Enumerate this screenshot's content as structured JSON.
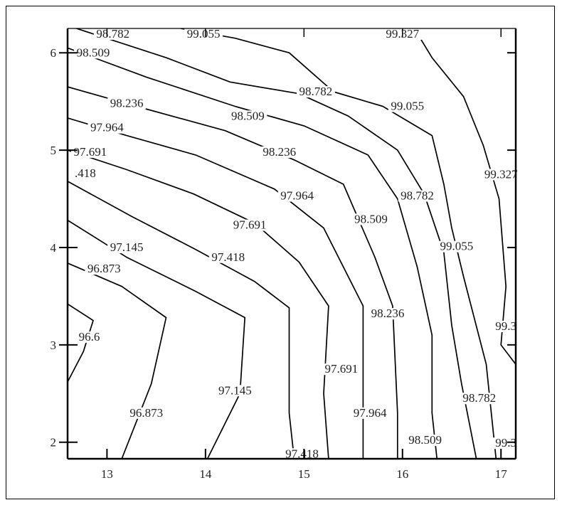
{
  "chart_data": {
    "type": "contour",
    "title": "",
    "xlabel": "",
    "ylabel": "",
    "xlim": [
      12.6,
      17.15
    ],
    "ylim": [
      1.83,
      6.25
    ],
    "x_ticks": [
      "13",
      "14",
      "15",
      "16",
      "17"
    ],
    "y_ticks": [
      "2",
      "3",
      "4",
      "5",
      "6"
    ],
    "x_tick_values": [
      13,
      14,
      15,
      16,
      17
    ],
    "y_tick_values": [
      2,
      3,
      4,
      5,
      6
    ],
    "contours": [
      {
        "level": "96.6",
        "points": [
          [
            12.6,
            3.42
          ],
          [
            12.86,
            3.25
          ],
          [
            12.76,
            2.93
          ],
          [
            12.6,
            2.62
          ]
        ],
        "labels": [
          [
            12.82,
            3.05
          ]
        ]
      },
      {
        "level": "96.873",
        "points": [
          [
            12.6,
            3.84
          ],
          [
            13.15,
            3.6
          ],
          [
            13.6,
            3.28
          ],
          [
            13.45,
            2.6
          ],
          [
            13.15,
            1.83
          ]
        ],
        "labels": [
          [
            12.97,
            3.75
          ],
          [
            13.4,
            2.27
          ]
        ]
      },
      {
        "level": "97.145",
        "points": [
          [
            12.6,
            4.28
          ],
          [
            13.2,
            3.9
          ],
          [
            13.9,
            3.55
          ],
          [
            14.4,
            3.28
          ],
          [
            14.35,
            2.5
          ],
          [
            14.02,
            1.83
          ]
        ],
        "labels": [
          [
            13.2,
            3.97
          ],
          [
            14.3,
            2.5
          ]
        ]
      },
      {
        "level": "97.418",
        "points": [
          [
            12.6,
            4.68
          ],
          [
            13.25,
            4.32
          ],
          [
            13.9,
            3.98
          ],
          [
            14.5,
            3.65
          ],
          [
            14.85,
            3.38
          ],
          [
            14.85,
            2.3
          ],
          [
            14.9,
            1.83
          ]
        ],
        "labels": [
          [
            12.78,
            4.73
          ],
          [
            14.23,
            3.87
          ],
          [
            14.98,
            1.85
          ]
        ]
      },
      {
        "level": "97.691",
        "points": [
          [
            12.6,
            5.0
          ],
          [
            13.2,
            4.8
          ],
          [
            13.88,
            4.55
          ],
          [
            14.5,
            4.25
          ],
          [
            14.95,
            3.85
          ],
          [
            15.25,
            3.4
          ],
          [
            15.2,
            2.5
          ],
          [
            15.25,
            1.83
          ]
        ],
        "labels": [
          [
            12.83,
            4.95
          ],
          [
            14.45,
            4.2
          ],
          [
            15.38,
            2.72
          ]
        ]
      },
      {
        "level": "97.964",
        "points": [
          [
            12.6,
            5.33
          ],
          [
            13.2,
            5.15
          ],
          [
            13.9,
            4.95
          ],
          [
            14.7,
            4.6
          ],
          [
            15.2,
            4.2
          ],
          [
            15.45,
            3.7
          ],
          [
            15.6,
            3.4
          ],
          [
            15.6,
            2.2
          ],
          [
            15.6,
            1.83
          ]
        ],
        "labels": [
          [
            13.0,
            5.2
          ],
          [
            14.93,
            4.5
          ],
          [
            15.67,
            2.27
          ]
        ]
      },
      {
        "level": "98.236",
        "points": [
          [
            12.6,
            5.65
          ],
          [
            13.3,
            5.45
          ],
          [
            14.2,
            5.2
          ],
          [
            14.9,
            4.9
          ],
          [
            15.4,
            4.65
          ],
          [
            15.72,
            3.9
          ],
          [
            15.9,
            3.4
          ],
          [
            15.95,
            2.3
          ],
          [
            15.95,
            1.83
          ]
        ],
        "labels": [
          [
            13.2,
            5.45
          ],
          [
            14.75,
            4.95
          ],
          [
            15.85,
            3.29
          ]
        ]
      },
      {
        "level": "98.509",
        "points": [
          [
            12.6,
            6.05
          ],
          [
            13.4,
            5.75
          ],
          [
            14.3,
            5.45
          ],
          [
            15.0,
            5.25
          ],
          [
            15.65,
            4.95
          ],
          [
            15.95,
            4.5
          ],
          [
            16.15,
            3.8
          ],
          [
            16.3,
            3.1
          ],
          [
            16.3,
            2.3
          ],
          [
            16.35,
            1.83
          ]
        ],
        "labels": [
          [
            12.86,
            5.97
          ],
          [
            14.43,
            5.32
          ],
          [
            15.68,
            4.26
          ],
          [
            16.23,
            1.99
          ]
        ]
      },
      {
        "level": "98.782",
        "points": [
          [
            12.6,
            6.28
          ],
          [
            13.6,
            5.95
          ],
          [
            14.25,
            5.7
          ],
          [
            14.95,
            5.58
          ],
          [
            15.45,
            5.35
          ],
          [
            15.95,
            5.0
          ],
          [
            16.22,
            4.55
          ],
          [
            16.42,
            3.95
          ],
          [
            16.5,
            3.2
          ],
          [
            16.6,
            2.6
          ],
          [
            16.75,
            1.83
          ]
        ],
        "labels": [
          [
            13.06,
            6.25
          ],
          [
            15.12,
            5.57
          ],
          [
            16.15,
            4.5
          ],
          [
            16.78,
            2.42
          ]
        ]
      },
      {
        "level": "99.055",
        "points": [
          [
            13.75,
            6.25
          ],
          [
            14.3,
            6.15
          ],
          [
            14.85,
            6.0
          ],
          [
            15.3,
            5.6
          ],
          [
            15.8,
            5.45
          ],
          [
            16.3,
            5.15
          ],
          [
            16.42,
            4.65
          ],
          [
            16.5,
            4.2
          ],
          [
            16.62,
            3.7
          ],
          [
            16.85,
            2.8
          ],
          [
            16.95,
            1.83
          ]
        ],
        "labels": [
          [
            13.98,
            6.25
          ],
          [
            16.05,
            5.42
          ],
          [
            16.55,
            3.98
          ]
        ]
      },
      {
        "level": "99.327",
        "points": [
          [
            16.12,
            6.25
          ],
          [
            16.3,
            5.95
          ],
          [
            16.62,
            5.55
          ],
          [
            16.82,
            5.05
          ],
          [
            16.98,
            4.5
          ],
          [
            17.05,
            3.6
          ],
          [
            17.0,
            3.0
          ],
          [
            17.15,
            2.8
          ]
        ],
        "labels": [
          [
            16.0,
            6.27
          ],
          [
            17.0,
            4.72
          ],
          [
            17.05,
            3.16
          ],
          [
            17.05,
            1.96
          ]
        ]
      }
    ],
    "label_texts": {
      "99.327": [
        "99.327",
        "99.327",
        "99.3",
        "99.3"
      ],
      "98.782": [
        "98.782",
        "98.782",
        "98.782",
        "98.782"
      ],
      "99.055": [
        "99.055",
        "99.055",
        "99.055"
      ],
      "97.418": [
        ".418",
        "97.418",
        "97.418"
      ],
      "96.6": [
        "96.6"
      ],
      "96.873": [
        "96.873",
        "96.873"
      ],
      "97.145": [
        "97.145",
        "97.145"
      ],
      "97.691": [
        "97.691",
        "97.691",
        "97.691"
      ],
      "97.964": [
        "97.964",
        "97.964",
        "97.964"
      ],
      "98.236": [
        "98.236",
        "98.236",
        "98.236"
      ],
      "98.509": [
        "98.509",
        "98.509",
        "98.509",
        "98.509"
      ]
    },
    "grid": false,
    "legend": "none",
    "colors": {
      "line": "#000000",
      "text": "#222222",
      "background": "#ffffff"
    }
  }
}
